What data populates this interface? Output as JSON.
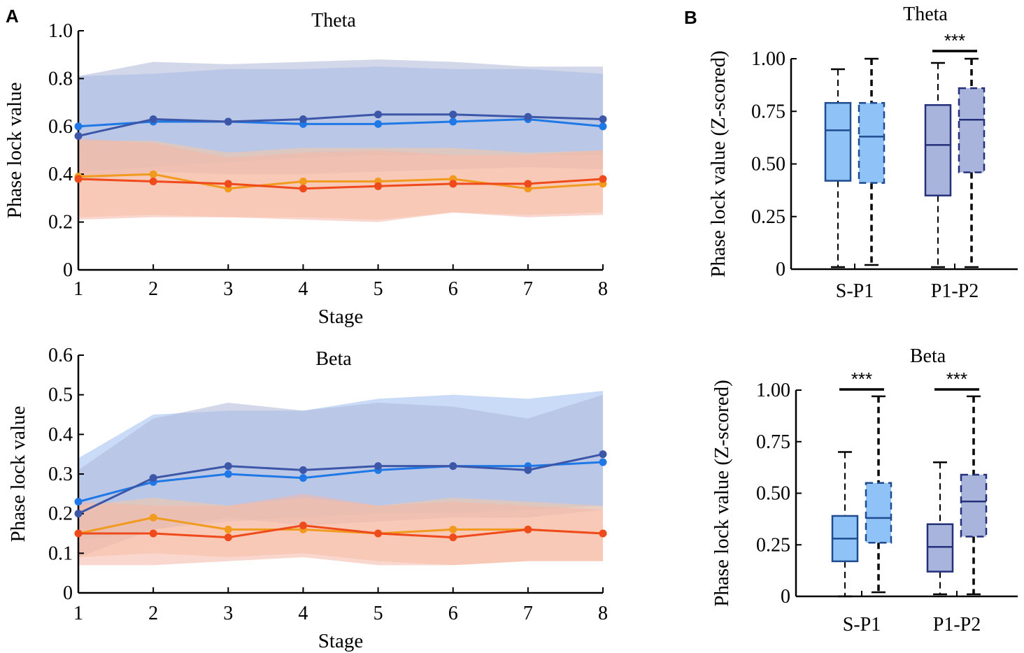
{
  "panels": {
    "a": "A",
    "b": "B"
  },
  "chart_data": [
    {
      "type": "line",
      "panel": "A",
      "title": "Theta",
      "xlabel": "Stage",
      "ylabel": "Phase lock value",
      "x": [
        1,
        2,
        3,
        4,
        5,
        6,
        7,
        8
      ],
      "xlim": [
        1,
        8
      ],
      "ylim": [
        0,
        1.0
      ],
      "yticks": [
        "0",
        "0.2",
        "0.4",
        "0.6",
        "0.8",
        "1.0"
      ],
      "yticks_values": [
        0,
        0.2,
        0.4,
        0.6,
        0.8,
        1.0
      ],
      "series": [
        {
          "color": "#1e78e6",
          "values": [
            0.6,
            0.62,
            0.62,
            0.61,
            0.61,
            0.62,
            0.63,
            0.6
          ],
          "band_upper": [
            0.81,
            0.82,
            0.84,
            0.84,
            0.85,
            0.84,
            0.84,
            0.82
          ],
          "band_lower": [
            0.41,
            0.43,
            0.45,
            0.47,
            0.48,
            0.48,
            0.48,
            0.48
          ],
          "fill": "#9dbdf0"
        },
        {
          "color": "#3c56a8",
          "values": [
            0.56,
            0.63,
            0.62,
            0.63,
            0.65,
            0.65,
            0.64,
            0.63
          ],
          "band_upper": [
            0.81,
            0.87,
            0.86,
            0.87,
            0.88,
            0.87,
            0.85,
            0.85
          ],
          "band_lower": [
            0.37,
            0.41,
            0.4,
            0.4,
            0.41,
            0.42,
            0.43,
            0.42
          ],
          "fill": "#aeb6d8"
        },
        {
          "color": "#f09a1e",
          "values": [
            0.39,
            0.4,
            0.34,
            0.37,
            0.37,
            0.38,
            0.34,
            0.36
          ],
          "band_upper": [
            0.54,
            0.54,
            0.49,
            0.51,
            0.51,
            0.51,
            0.49,
            0.5
          ],
          "band_lower": [
            0.22,
            0.23,
            0.22,
            0.22,
            0.21,
            0.24,
            0.23,
            0.24
          ],
          "fill": "#f9c9a2"
        },
        {
          "color": "#ee4a1c",
          "values": [
            0.38,
            0.37,
            0.36,
            0.34,
            0.35,
            0.36,
            0.36,
            0.38
          ],
          "band_upper": [
            0.55,
            0.53,
            0.47,
            0.49,
            0.5,
            0.48,
            0.48,
            0.5
          ],
          "band_lower": [
            0.21,
            0.22,
            0.22,
            0.21,
            0.2,
            0.24,
            0.22,
            0.23
          ],
          "fill": "#f5b7a5"
        }
      ]
    },
    {
      "type": "line",
      "panel": "A",
      "title": "Beta",
      "xlabel": "Stage",
      "ylabel": "Phase lock value",
      "x": [
        1,
        2,
        3,
        4,
        5,
        6,
        7,
        8
      ],
      "xlim": [
        1,
        8
      ],
      "ylim": [
        0,
        0.6
      ],
      "yticks": [
        "0",
        "0.1",
        "0.2",
        "0.3",
        "0.4",
        "0.5",
        "0.6"
      ],
      "yticks_values": [
        0,
        0.1,
        0.2,
        0.3,
        0.4,
        0.5,
        0.6
      ],
      "series": [
        {
          "color": "#1e78e6",
          "values": [
            0.23,
            0.28,
            0.3,
            0.29,
            0.31,
            0.32,
            0.32,
            0.33
          ],
          "band_upper": [
            0.34,
            0.45,
            0.46,
            0.46,
            0.49,
            0.5,
            0.49,
            0.51
          ],
          "band_lower": [
            0.13,
            0.16,
            0.18,
            0.19,
            0.2,
            0.2,
            0.21,
            0.22
          ],
          "fill": "#9dbdf0"
        },
        {
          "color": "#3c56a8",
          "values": [
            0.2,
            0.29,
            0.32,
            0.31,
            0.32,
            0.32,
            0.31,
            0.35
          ],
          "band_upper": [
            0.31,
            0.44,
            0.48,
            0.46,
            0.48,
            0.47,
            0.44,
            0.5
          ],
          "band_lower": [
            0.09,
            0.16,
            0.19,
            0.17,
            0.18,
            0.19,
            0.19,
            0.21
          ],
          "fill": "#aeb6d8"
        },
        {
          "color": "#f09a1e",
          "values": [
            0.15,
            0.19,
            0.16,
            0.16,
            0.15,
            0.16,
            0.16,
            0.15
          ],
          "band_upper": [
            0.22,
            0.24,
            0.22,
            0.24,
            0.22,
            0.24,
            0.23,
            0.22
          ],
          "band_lower": [
            0.09,
            0.1,
            0.09,
            0.1,
            0.08,
            0.07,
            0.08,
            0.08
          ],
          "fill": "#f9c9a2"
        },
        {
          "color": "#ee4a1c",
          "values": [
            0.15,
            0.15,
            0.14,
            0.17,
            0.15,
            0.14,
            0.16,
            0.15
          ],
          "band_upper": [
            0.23,
            0.22,
            0.22,
            0.25,
            0.22,
            0.23,
            0.22,
            0.21
          ],
          "band_lower": [
            0.07,
            0.07,
            0.08,
            0.09,
            0.07,
            0.07,
            0.08,
            0.08
          ],
          "fill": "#f5b7a5"
        }
      ]
    },
    {
      "type": "box",
      "panel": "B",
      "title": "Theta",
      "ylabel": "Phase lock value (Z-scored)",
      "categories": [
        "S-P1",
        "P1-P2"
      ],
      "ylim": [
        0,
        1.0
      ],
      "yticks": [
        "0",
        "0.25",
        "0.50",
        "0.75",
        "1.00"
      ],
      "yticks_values": [
        0,
        0.25,
        0.5,
        0.75,
        1.0
      ],
      "significance": [
        {
          "category": "P1-P2",
          "label": "***"
        }
      ],
      "boxes": [
        {
          "category": "S-P1",
          "fill": "#8fc3f7",
          "stroke": "#1f4b8f",
          "min": 0.01,
          "q1": 0.42,
          "median": 0.66,
          "q3": 0.79,
          "max": 0.95
        },
        {
          "category": "S-P1",
          "fill": "#8fc3f7",
          "stroke": "#1f4b8f",
          "dashed": true,
          "min": 0.02,
          "q1": 0.41,
          "median": 0.63,
          "q3": 0.79,
          "max": 1.0
        },
        {
          "category": "P1-P2",
          "fill": "#a9b4dc",
          "stroke": "#24307a",
          "min": 0.01,
          "q1": 0.35,
          "median": 0.59,
          "q3": 0.78,
          "max": 0.98
        },
        {
          "category": "P1-P2",
          "fill": "#a9b4dc",
          "stroke": "#24307a",
          "dashed": true,
          "min": 0.01,
          "q1": 0.46,
          "median": 0.71,
          "q3": 0.86,
          "max": 1.0
        }
      ]
    },
    {
      "type": "box",
      "panel": "B",
      "title": "Beta",
      "ylabel": "Phase lock value (Z-scored)",
      "categories": [
        "S-P1",
        "P1-P2"
      ],
      "ylim": [
        0,
        1.0
      ],
      "yticks": [
        "0",
        "0.25",
        "0.50",
        "0.75",
        "1.00"
      ],
      "yticks_values": [
        0,
        0.25,
        0.5,
        0.75,
        1.0
      ],
      "significance": [
        {
          "category": "S-P1",
          "label": "***"
        },
        {
          "category": "P1-P2",
          "label": "***"
        }
      ],
      "boxes": [
        {
          "category": "S-P1",
          "fill": "#8fc3f7",
          "stroke": "#1f4b8f",
          "min": 0.0,
          "q1": 0.17,
          "median": 0.28,
          "q3": 0.39,
          "max": 0.7
        },
        {
          "category": "S-P1",
          "fill": "#8fc3f7",
          "stroke": "#1f4b8f",
          "dashed": true,
          "min": 0.02,
          "q1": 0.26,
          "median": 0.38,
          "q3": 0.55,
          "max": 0.97
        },
        {
          "category": "P1-P2",
          "fill": "#a9b4dc",
          "stroke": "#24307a",
          "min": 0.01,
          "q1": 0.12,
          "median": 0.24,
          "q3": 0.35,
          "max": 0.65
        },
        {
          "category": "P1-P2",
          "fill": "#a9b4dc",
          "stroke": "#24307a",
          "dashed": true,
          "min": 0.01,
          "q1": 0.29,
          "median": 0.46,
          "q3": 0.59,
          "max": 0.97
        }
      ]
    }
  ]
}
